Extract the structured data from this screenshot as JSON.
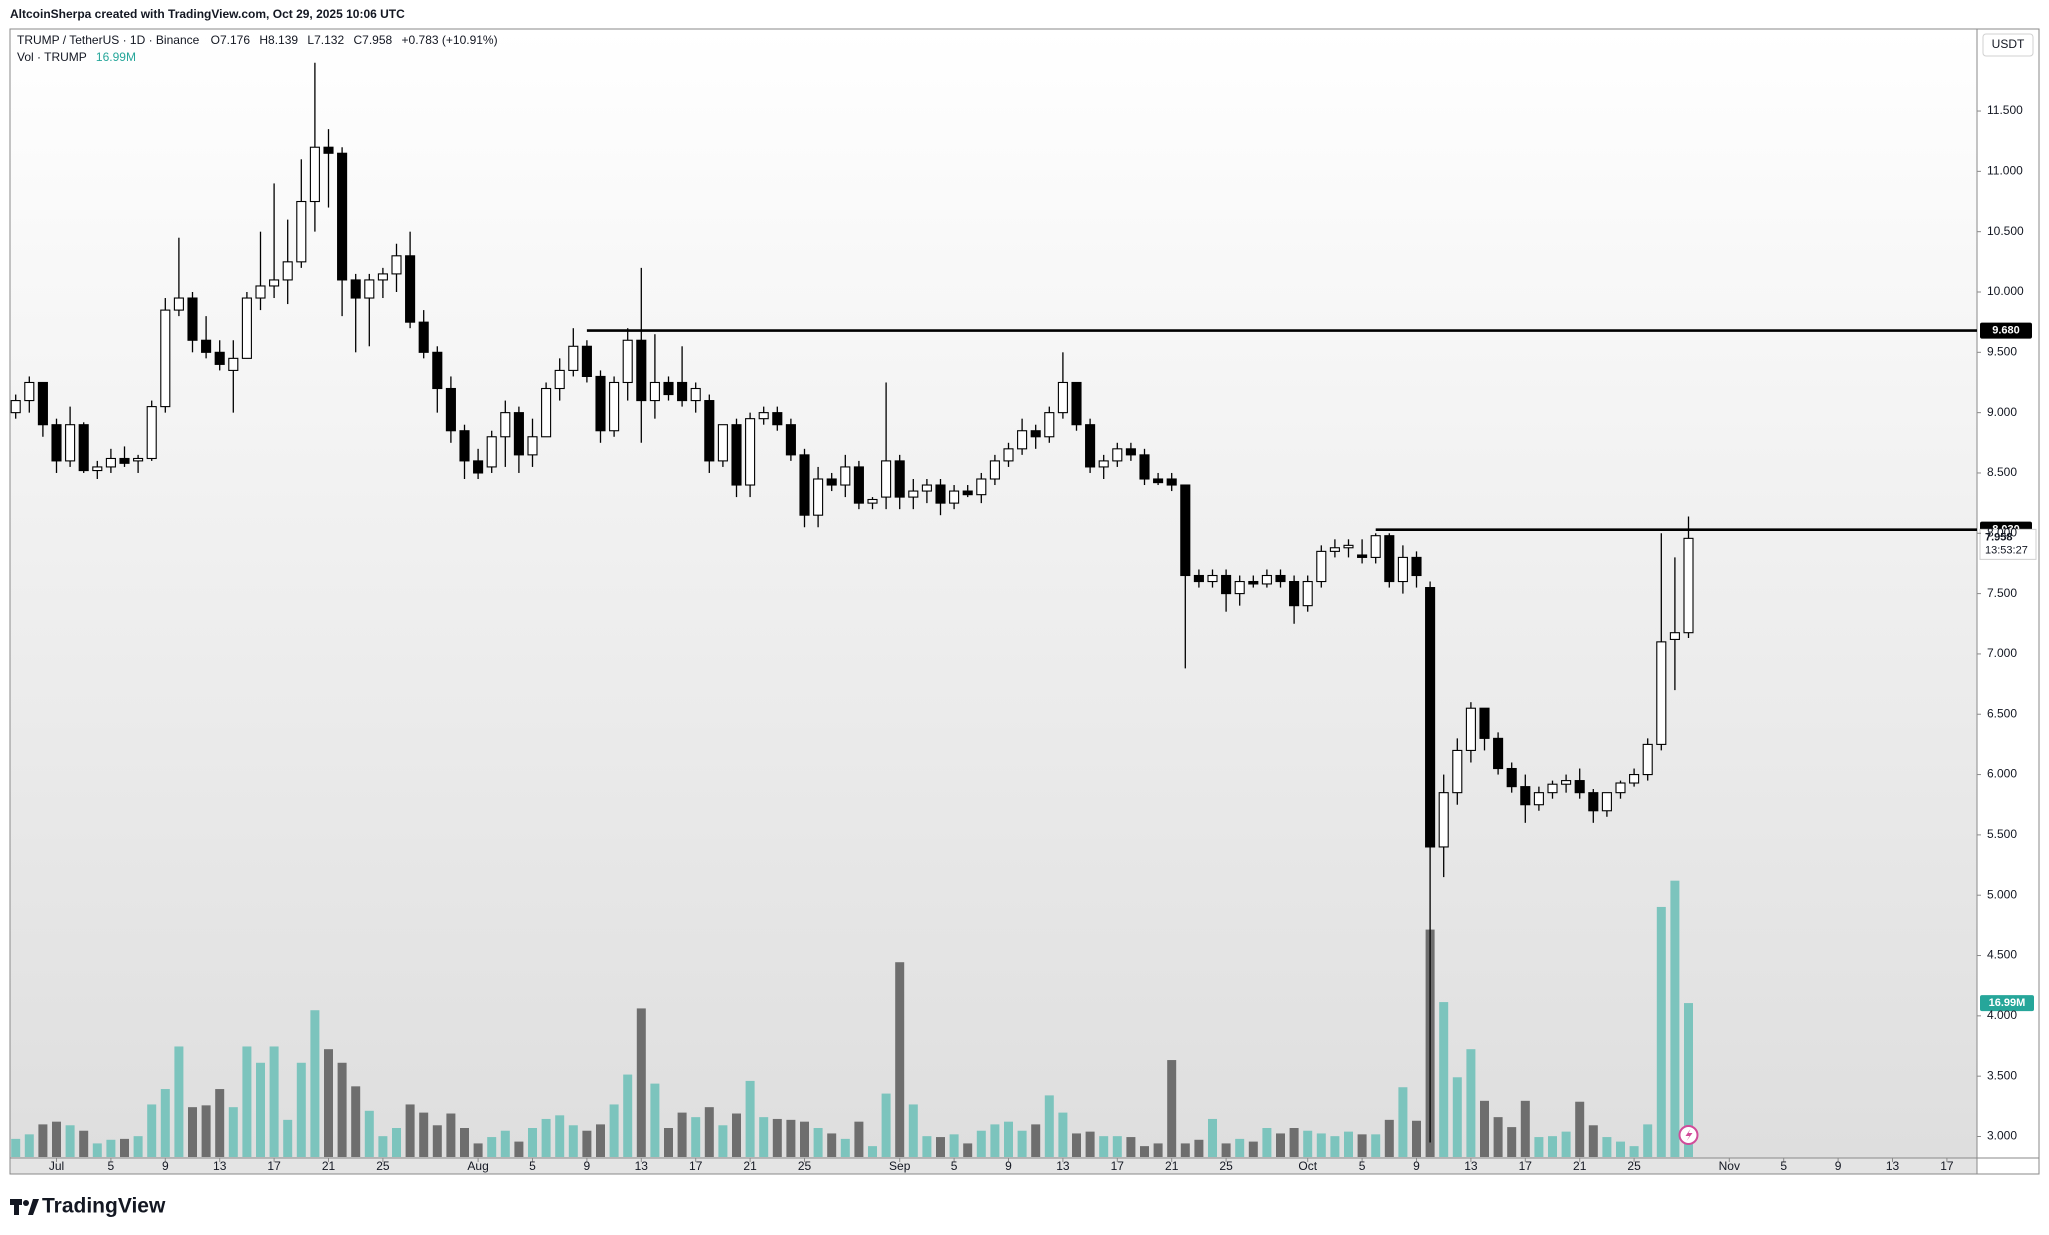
{
  "chart_data": {
    "type": "candlestick",
    "header": "AltcoinSherpa created with TradingView.com, Oct 29, 2025 10:06 UTC",
    "symbol": "TRUMP / TetherUS · 1D · Binance",
    "ohlc_prefixes": [
      "O",
      "H",
      "L",
      "C"
    ],
    "change": "+0.783 (+10.91%)",
    "volume_title": "Vol · TRUMP",
    "volume_label": "16.99M",
    "currency": "USDT",
    "countdown": "13:53:27",
    "last_price_label": "7.958",
    "footer": "TradingView",
    "up_color": "#ffffff",
    "down_color": "#000000",
    "wick_color": "#000000",
    "up_volume_color": "#7cc4bd",
    "down_volume_color": "#6e6e6e",
    "level_color": "#000000",
    "grid": false,
    "ylim": [
      2.83,
      12.18
    ],
    "yticks": [
      {
        "value": 3,
        "label": "3.000"
      },
      {
        "value": 3.5,
        "label": "3.500"
      },
      {
        "value": 4,
        "label": "4.000"
      },
      {
        "value": 4.5,
        "label": "4.500"
      },
      {
        "value": 5,
        "label": "5.000"
      },
      {
        "value": 5.5,
        "label": "5.500"
      },
      {
        "value": 6,
        "label": "6.000"
      },
      {
        "value": 6.5,
        "label": "6.500"
      },
      {
        "value": 7,
        "label": "7.000"
      },
      {
        "value": 7.5,
        "label": "7.500"
      },
      {
        "value": 8,
        "label": "8.000"
      },
      {
        "value": 8.5,
        "label": "8.500"
      },
      {
        "value": 9,
        "label": "9.000"
      },
      {
        "value": 9.5,
        "label": "9.500"
      },
      {
        "value": 10,
        "label": "10.000"
      },
      {
        "value": 10.5,
        "label": "10.500"
      },
      {
        "value": 11,
        "label": "11.000"
      },
      {
        "value": 11.5,
        "label": "11.500"
      }
    ],
    "levels": [
      {
        "value": 9.68,
        "label": "9.680",
        "from": "08-09"
      },
      {
        "value": 8.03,
        "label": "8.030",
        "from": "10-06"
      }
    ],
    "xticks": [
      {
        "value": "07-01",
        "label": "Jul"
      },
      {
        "value": "07-05",
        "label": "5"
      },
      {
        "value": "07-09",
        "label": "9"
      },
      {
        "value": "07-13",
        "label": "13"
      },
      {
        "value": "07-17",
        "label": "17"
      },
      {
        "value": "07-21",
        "label": "21"
      },
      {
        "value": "07-25",
        "label": "25"
      },
      {
        "value": "08-01",
        "label": "Aug"
      },
      {
        "value": "08-05",
        "label": "5"
      },
      {
        "value": "08-09",
        "label": "9"
      },
      {
        "value": "08-13",
        "label": "13"
      },
      {
        "value": "08-17",
        "label": "17"
      },
      {
        "value": "08-21",
        "label": "21"
      },
      {
        "value": "08-25",
        "label": "25"
      },
      {
        "value": "09-01",
        "label": "Sep"
      },
      {
        "value": "09-05",
        "label": "5"
      },
      {
        "value": "09-09",
        "label": "9"
      },
      {
        "value": "09-13",
        "label": "13"
      },
      {
        "value": "09-17",
        "label": "17"
      },
      {
        "value": "09-21",
        "label": "21"
      },
      {
        "value": "09-25",
        "label": "25"
      },
      {
        "value": "10-01",
        "label": "Oct"
      },
      {
        "value": "10-05",
        "label": "5"
      },
      {
        "value": "10-09",
        "label": "9"
      },
      {
        "value": "10-13",
        "label": "13"
      },
      {
        "value": "10-17",
        "label": "17"
      },
      {
        "value": "10-21",
        "label": "21"
      },
      {
        "value": "10-25",
        "label": "25"
      },
      {
        "value": "11-01",
        "label": "Nov"
      },
      {
        "value": "11-05",
        "label": "5"
      },
      {
        "value": "11-09",
        "label": "9"
      },
      {
        "value": "11-13",
        "label": "13"
      },
      {
        "value": "11-17",
        "label": "17"
      }
    ],
    "x": [
      "06-28",
      "06-29",
      "06-30",
      "07-01",
      "07-02",
      "07-03",
      "07-04",
      "07-05",
      "07-06",
      "07-07",
      "07-08",
      "07-09",
      "07-10",
      "07-11",
      "07-12",
      "07-13",
      "07-14",
      "07-15",
      "07-16",
      "07-17",
      "07-18",
      "07-19",
      "07-20",
      "07-21",
      "07-22",
      "07-23",
      "07-24",
      "07-25",
      "07-26",
      "07-27",
      "07-28",
      "07-29",
      "07-30",
      "07-31",
      "08-01",
      "08-02",
      "08-03",
      "08-04",
      "08-05",
      "08-06",
      "08-07",
      "08-08",
      "08-09",
      "08-10",
      "08-11",
      "08-12",
      "08-13",
      "08-14",
      "08-15",
      "08-16",
      "08-17",
      "08-18",
      "08-19",
      "08-20",
      "08-21",
      "08-22",
      "08-23",
      "08-24",
      "08-25",
      "08-26",
      "08-27",
      "08-28",
      "08-29",
      "08-30",
      "08-31",
      "09-01",
      "09-02",
      "09-03",
      "09-04",
      "09-05",
      "09-06",
      "09-07",
      "09-08",
      "09-09",
      "09-10",
      "09-11",
      "09-12",
      "09-13",
      "09-14",
      "09-15",
      "09-16",
      "09-17",
      "09-18",
      "09-19",
      "09-20",
      "09-21",
      "09-22",
      "09-23",
      "09-24",
      "09-25",
      "09-26",
      "09-27",
      "09-28",
      "09-29",
      "09-30",
      "10-01",
      "10-02",
      "10-03",
      "10-04",
      "10-05",
      "10-06",
      "10-07",
      "10-08",
      "10-09",
      "10-10",
      "10-11",
      "10-12",
      "10-13",
      "10-14",
      "10-15",
      "10-16",
      "10-17",
      "10-18",
      "10-19",
      "10-20",
      "10-21",
      "10-22",
      "10-23",
      "10-24",
      "10-25",
      "10-26",
      "10-27",
      "10-28",
      "10-29"
    ],
    "open": [
      9.0,
      9.1,
      9.25,
      8.9,
      8.6,
      8.9,
      8.52,
      8.55,
      8.62,
      8.6,
      8.62,
      9.05,
      9.85,
      9.95,
      9.6,
      9.5,
      9.35,
      9.45,
      9.95,
      10.05,
      10.1,
      10.25,
      10.75,
      11.2,
      11.15,
      10.1,
      9.95,
      10.1,
      10.15,
      10.3,
      9.75,
      9.5,
      9.2,
      8.85,
      8.6,
      8.55,
      8.8,
      9.0,
      8.65,
      8.8,
      9.2,
      9.35,
      9.55,
      9.3,
      8.85,
      9.25,
      9.6,
      9.1,
      9.25,
      9.25,
      9.1,
      9.1,
      8.6,
      8.9,
      8.4,
      8.95,
      9.0,
      8.9,
      8.65,
      8.15,
      8.45,
      8.4,
      8.55,
      8.25,
      8.3,
      8.6,
      8.3,
      8.35,
      8.4,
      8.25,
      8.35,
      8.32,
      8.45,
      8.6,
      8.7,
      8.85,
      8.8,
      9.0,
      9.25,
      8.9,
      8.55,
      8.6,
      8.7,
      8.65,
      8.45,
      8.45,
      8.4,
      7.65,
      7.6,
      7.65,
      7.5,
      7.6,
      7.58,
      7.65,
      7.6,
      7.4,
      7.6,
      7.85,
      7.88,
      7.82,
      7.8,
      7.98,
      7.6,
      7.8,
      7.55,
      5.4,
      5.85,
      6.2,
      6.55,
      6.3,
      6.05,
      5.9,
      5.75,
      5.85,
      5.92,
      5.95,
      5.85,
      5.7,
      5.85,
      5.93,
      6.0,
      6.25,
      7.12,
      7.176
    ],
    "high": [
      9.15,
      9.3,
      9.25,
      8.95,
      9.05,
      8.92,
      8.6,
      8.7,
      8.72,
      8.65,
      9.1,
      9.95,
      10.45,
      10.0,
      9.8,
      9.6,
      9.6,
      10.0,
      10.5,
      10.9,
      10.6,
      11.1,
      11.9,
      11.35,
      11.2,
      10.15,
      10.15,
      10.2,
      10.4,
      10.5,
      9.85,
      9.55,
      9.3,
      8.9,
      8.7,
      8.85,
      9.1,
      9.05,
      8.95,
      9.25,
      9.45,
      9.7,
      9.6,
      9.35,
      9.3,
      9.7,
      10.2,
      9.65,
      9.3,
      9.55,
      9.25,
      9.15,
      8.9,
      8.95,
      9.0,
      9.05,
      9.05,
      8.95,
      8.7,
      8.55,
      8.5,
      8.65,
      8.6,
      8.3,
      9.25,
      8.65,
      8.45,
      8.45,
      8.45,
      8.4,
      8.4,
      8.5,
      8.65,
      8.75,
      8.95,
      8.9,
      9.05,
      9.5,
      9.25,
      8.95,
      8.65,
      8.75,
      8.75,
      8.7,
      8.5,
      8.5,
      8.4,
      7.7,
      7.7,
      7.7,
      7.65,
      7.65,
      7.7,
      7.7,
      7.65,
      7.65,
      7.9,
      7.95,
      7.95,
      7.95,
      8.0,
      8.0,
      7.9,
      7.85,
      7.6,
      6.0,
      6.3,
      6.6,
      6.55,
      6.35,
      6.1,
      6.0,
      5.9,
      5.95,
      6.0,
      6.05,
      5.88,
      5.85,
      5.95,
      6.05,
      6.3,
      8.0,
      7.8,
      8.139
    ],
    "low": [
      8.95,
      9.0,
      8.8,
      8.5,
      8.55,
      8.5,
      8.45,
      8.5,
      8.55,
      8.5,
      8.6,
      9.0,
      9.8,
      9.5,
      9.45,
      9.35,
      9.0,
      9.45,
      9.85,
      9.95,
      9.9,
      10.2,
      10.5,
      10.7,
      9.8,
      9.5,
      9.55,
      9.95,
      10.0,
      9.7,
      9.45,
      9.0,
      8.75,
      8.45,
      8.45,
      8.5,
      8.55,
      8.5,
      8.55,
      8.8,
      9.1,
      9.3,
      9.25,
      8.75,
      8.8,
      9.1,
      8.75,
      8.95,
      9.1,
      9.05,
      9.0,
      8.5,
      8.55,
      8.3,
      8.3,
      8.9,
      8.85,
      8.6,
      8.05,
      8.05,
      8.35,
      8.3,
      8.2,
      8.2,
      8.2,
      8.2,
      8.2,
      8.25,
      8.15,
      8.2,
      8.3,
      8.25,
      8.4,
      8.55,
      8.65,
      8.7,
      8.75,
      8.95,
      8.85,
      8.5,
      8.45,
      8.55,
      8.6,
      8.4,
      8.4,
      8.35,
      6.88,
      7.55,
      7.55,
      7.35,
      7.4,
      7.55,
      7.55,
      7.55,
      7.25,
      7.35,
      7.55,
      7.8,
      7.8,
      7.75,
      7.75,
      7.55,
      7.5,
      7.55,
      2.95,
      5.15,
      5.75,
      6.1,
      6.2,
      6.0,
      5.85,
      5.6,
      5.7,
      5.8,
      5.85,
      5.8,
      5.6,
      5.65,
      5.8,
      5.9,
      5.95,
      6.2,
      6.7,
      7.132
    ],
    "close": [
      9.1,
      9.25,
      8.9,
      8.6,
      8.9,
      8.52,
      8.55,
      8.62,
      8.58,
      8.62,
      9.05,
      9.85,
      9.95,
      9.6,
      9.5,
      9.4,
      9.45,
      9.95,
      10.05,
      10.1,
      10.25,
      10.75,
      11.2,
      11.15,
      10.1,
      9.95,
      10.1,
      10.15,
      10.3,
      9.75,
      9.5,
      9.2,
      8.85,
      8.6,
      8.5,
      8.8,
      9.0,
      8.65,
      8.8,
      9.2,
      9.35,
      9.55,
      9.3,
      8.85,
      9.25,
      9.6,
      9.1,
      9.25,
      9.15,
      9.1,
      9.2,
      8.6,
      8.9,
      8.4,
      8.95,
      9.0,
      8.9,
      8.65,
      8.15,
      8.45,
      8.4,
      8.55,
      8.25,
      8.28,
      8.6,
      8.3,
      8.35,
      8.4,
      8.25,
      8.35,
      8.32,
      8.45,
      8.6,
      8.7,
      8.85,
      8.8,
      9.0,
      9.25,
      8.9,
      8.55,
      8.6,
      8.7,
      8.65,
      8.45,
      8.42,
      8.4,
      7.65,
      7.6,
      7.65,
      7.5,
      7.6,
      7.58,
      7.65,
      7.6,
      7.4,
      7.6,
      7.85,
      7.88,
      7.9,
      7.8,
      7.98,
      7.6,
      7.8,
      7.65,
      5.4,
      5.85,
      6.2,
      6.55,
      6.3,
      6.05,
      5.9,
      5.75,
      5.85,
      5.92,
      5.95,
      5.85,
      5.7,
      5.85,
      5.93,
      6.0,
      6.25,
      7.1,
      7.176,
      7.958
    ],
    "volume": [
      2.0,
      2.5,
      3.6,
      3.9,
      3.5,
      2.9,
      1.5,
      1.9,
      2.0,
      2.3,
      5.8,
      7.5,
      12.2,
      5.5,
      5.7,
      7.5,
      5.5,
      12.2,
      10.4,
      12.2,
      4.1,
      10.4,
      16.2,
      11.9,
      10.4,
      7.8,
      5.1,
      2.3,
      3.2,
      5.8,
      4.9,
      3.5,
      4.8,
      3.2,
      1.5,
      2.2,
      2.9,
      1.7,
      3.2,
      4.2,
      4.6,
      3.5,
      2.9,
      3.6,
      5.8,
      9.1,
      16.4,
      8.1,
      3.2,
      4.9,
      4.4,
      5.5,
      3.5,
      4.8,
      8.4,
      4.4,
      4.2,
      4.1,
      3.9,
      3.2,
      2.6,
      2.0,
      3.9,
      1.2,
      7.0,
      21.5,
      5.8,
      2.3,
      2.2,
      2.5,
      1.5,
      2.9,
      3.6,
      3.9,
      2.9,
      3.6,
      6.8,
      4.9,
      2.6,
      2.8,
      2.3,
      2.3,
      2.2,
      1.2,
      1.5,
      10.7,
      1.5,
      1.9,
      4.2,
      1.5,
      2.0,
      1.7,
      3.2,
      2.6,
      3.2,
      2.9,
      2.6,
      2.3,
      2.8,
      2.5,
      2.5,
      4.1,
      7.7,
      4.0,
      25.1,
      17.1,
      8.8,
      11.9,
      6.2,
      4.4,
      3.3,
      6.2,
      2.2,
      2.3,
      2.8,
      6.1,
      3.5,
      2.2,
      1.7,
      1.2,
      3.6,
      27.6,
      30.5,
      16.99
    ]
  }
}
